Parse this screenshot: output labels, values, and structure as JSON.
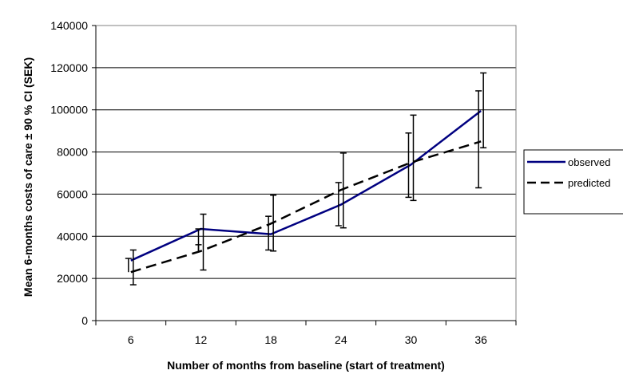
{
  "chart_data": {
    "type": "line",
    "title": "",
    "xlabel": "Number of months from baseline (start of treatment)",
    "ylabel": "Mean 6-months costs of care ± 90 % CI (SEK)",
    "categories": [
      "6",
      "12",
      "18",
      "24",
      "30",
      "36"
    ],
    "ylim": [
      0,
      140000
    ],
    "yticks": [
      0,
      20000,
      40000,
      60000,
      80000,
      100000,
      120000,
      140000
    ],
    "grid": true,
    "legend_position": "right",
    "series": [
      {
        "name": "observed",
        "color": "#000080",
        "style": "solid",
        "values": [
          28500,
          43500,
          41000,
          55000,
          74000,
          99500
        ],
        "ci_low": [
          17000,
          24000,
          33000,
          44000,
          57000,
          82000
        ],
        "ci_high": [
          33500,
          50500,
          59500,
          79500,
          97500,
          117500
        ]
      },
      {
        "name": "predicted",
        "color": "#000000",
        "style": "dashed",
        "values": [
          23000,
          33000,
          46000,
          62000,
          75000,
          85000
        ],
        "ci_low": [
          null,
          36000,
          33500,
          45000,
          58500,
          63000
        ],
        "ci_high": [
          29500,
          43500,
          49500,
          65500,
          89000,
          109000
        ]
      }
    ]
  }
}
